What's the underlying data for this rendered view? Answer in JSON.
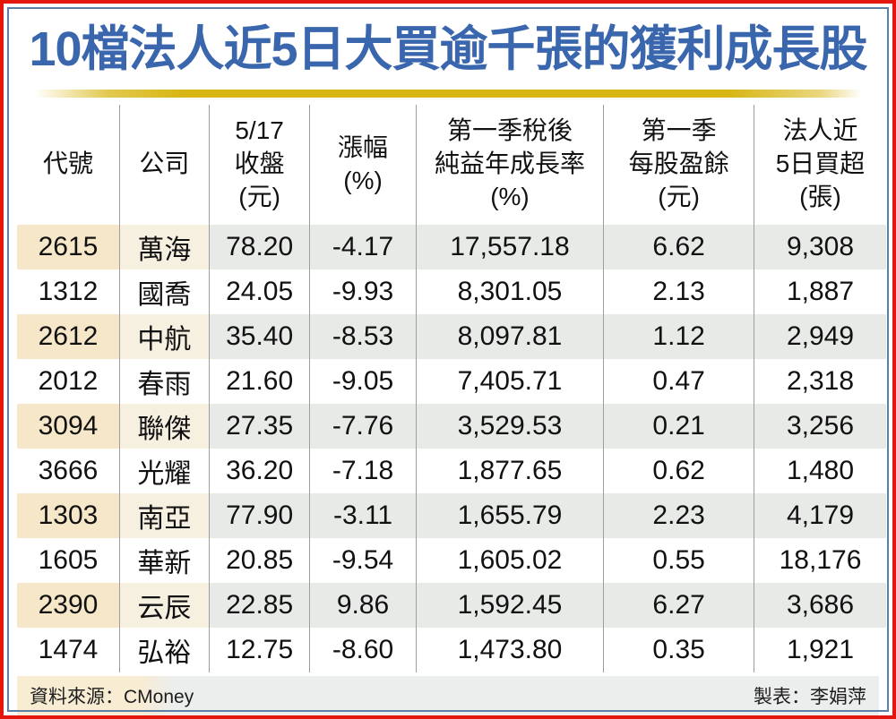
{
  "title": "10檔法人近5日大買逾千張的獲利成長股",
  "colors": {
    "border_red": "#E3170D",
    "frame_blue": "#5B7FA6",
    "title_blue": "#3A66AE",
    "gold": "#D8B614",
    "stripe_beige": "#F6E7C8",
    "stripe_cream": "#F6F0E1",
    "stripe_gray": "#E8EAE8",
    "footer_beige": "#F8ECD2",
    "footer_gray": "#ECEDED",
    "grid_line": "#9E9E9E",
    "text_dark": "#111111"
  },
  "chart_data": {
    "type": "table",
    "title": "10檔法人近5日大買逾千張的獲利成長股",
    "columns": [
      {
        "key": "code",
        "label": "代號",
        "label_lines": [
          "代號"
        ]
      },
      {
        "key": "company",
        "label": "公司",
        "label_lines": [
          "公司"
        ]
      },
      {
        "key": "close_price",
        "label": "5/17收盤(元)",
        "label_lines": [
          "5/17",
          "收盤",
          "(元)"
        ]
      },
      {
        "key": "change_pct",
        "label": "漲幅(%)",
        "label_lines": [
          "漲幅",
          "(%)"
        ]
      },
      {
        "key": "q1_profit_growth_pct",
        "label": "第一季稅後純益年成長率(%)",
        "label_lines": [
          "第一季稅後",
          "純益年成長率",
          "(%)"
        ]
      },
      {
        "key": "q1_eps",
        "label": "第一季每股盈餘(元)",
        "label_lines": [
          "第一季",
          "每股盈餘",
          "(元)"
        ]
      },
      {
        "key": "inst_net_buy_lots",
        "label": "法人近5日買超(張)",
        "label_lines": [
          "法人近",
          "5日買超",
          "(張)"
        ]
      }
    ],
    "rows": [
      [
        "2615",
        "萬海",
        "78.20",
        "-4.17",
        "17,557.18",
        "6.62",
        "9,308"
      ],
      [
        "1312",
        "國喬",
        "24.05",
        "-9.93",
        "8,301.05",
        "2.13",
        "1,887"
      ],
      [
        "2612",
        "中航",
        "35.40",
        "-8.53",
        "8,097.81",
        "1.12",
        "2,949"
      ],
      [
        "2012",
        "春雨",
        "21.60",
        "-9.05",
        "7,405.71",
        "0.47",
        "2,318"
      ],
      [
        "3094",
        "聯傑",
        "27.35",
        "-7.76",
        "3,529.53",
        "0.21",
        "3,256"
      ],
      [
        "3666",
        "光耀",
        "36.20",
        "-7.18",
        "1,877.65",
        "0.62",
        "1,480"
      ],
      [
        "1303",
        "南亞",
        "77.90",
        "-3.11",
        "1,655.79",
        "2.23",
        "4,179"
      ],
      [
        "1605",
        "華新",
        "20.85",
        "-9.54",
        "1,605.02",
        "0.55",
        "18,176"
      ],
      [
        "2390",
        "云辰",
        "22.85",
        "9.86",
        "1,592.45",
        "6.27",
        "3,686"
      ],
      [
        "1474",
        "弘裕",
        "12.75",
        "-8.60",
        "1,473.80",
        "0.35",
        "1,921"
      ]
    ]
  },
  "footer": {
    "source": "資料來源：CMoney",
    "credit": "製表：李娟萍"
  }
}
